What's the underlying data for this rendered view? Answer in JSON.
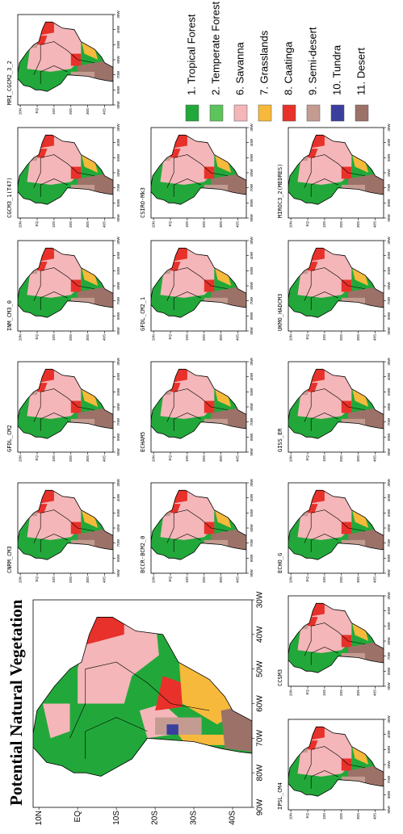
{
  "title": "Potential Natural Vegetation",
  "axes": {
    "lat_ticks": [
      "10N",
      "EQ",
      "10S",
      "20S",
      "30S",
      "40S"
    ],
    "lon_ticks": [
      "90W",
      "80W",
      "70W",
      "60W",
      "50W",
      "40W",
      "30W"
    ]
  },
  "panels": [
    {
      "title": "MRI_CGCM2_3_2"
    },
    {
      "title": "CGCM3_1(T47)"
    },
    {
      "title": "INM_CM3_0"
    },
    {
      "title": "GFDL_CM2"
    },
    {
      "title": "CNRM_CM3"
    },
    {
      "title": "CSIRO-Mk3"
    },
    {
      "title": "GFDL_CM2_1"
    },
    {
      "title": "ECHAM5"
    },
    {
      "title": "BCCR-BCM2_0"
    },
    {
      "title": "MIROC3_2(MEDRES)"
    },
    {
      "title": "UKMO_HADCM3"
    },
    {
      "title": "GISS_ER"
    },
    {
      "title": "ECHO_G"
    },
    {
      "title": "CCSM3"
    },
    {
      "title": "IPSL_CM4"
    }
  ],
  "legend": [
    {
      "label": "1. Tropical Forest",
      "color": "#22a83a"
    },
    {
      "label": "2. Temperate Forest",
      "color": "#5cc45a"
    },
    {
      "label": "6. Savanna",
      "color": "#f4b6b9"
    },
    {
      "label": "7. Grasslands",
      "color": "#f6b93b"
    },
    {
      "label": "8. Caatinga",
      "color": "#e8312a"
    },
    {
      "label": "9. Semi-desert",
      "color": "#c39b91"
    },
    {
      "label": "10. Tundra",
      "color": "#3a3f9e"
    },
    {
      "label": "11. Desert",
      "color": "#9c7268"
    }
  ]
}
